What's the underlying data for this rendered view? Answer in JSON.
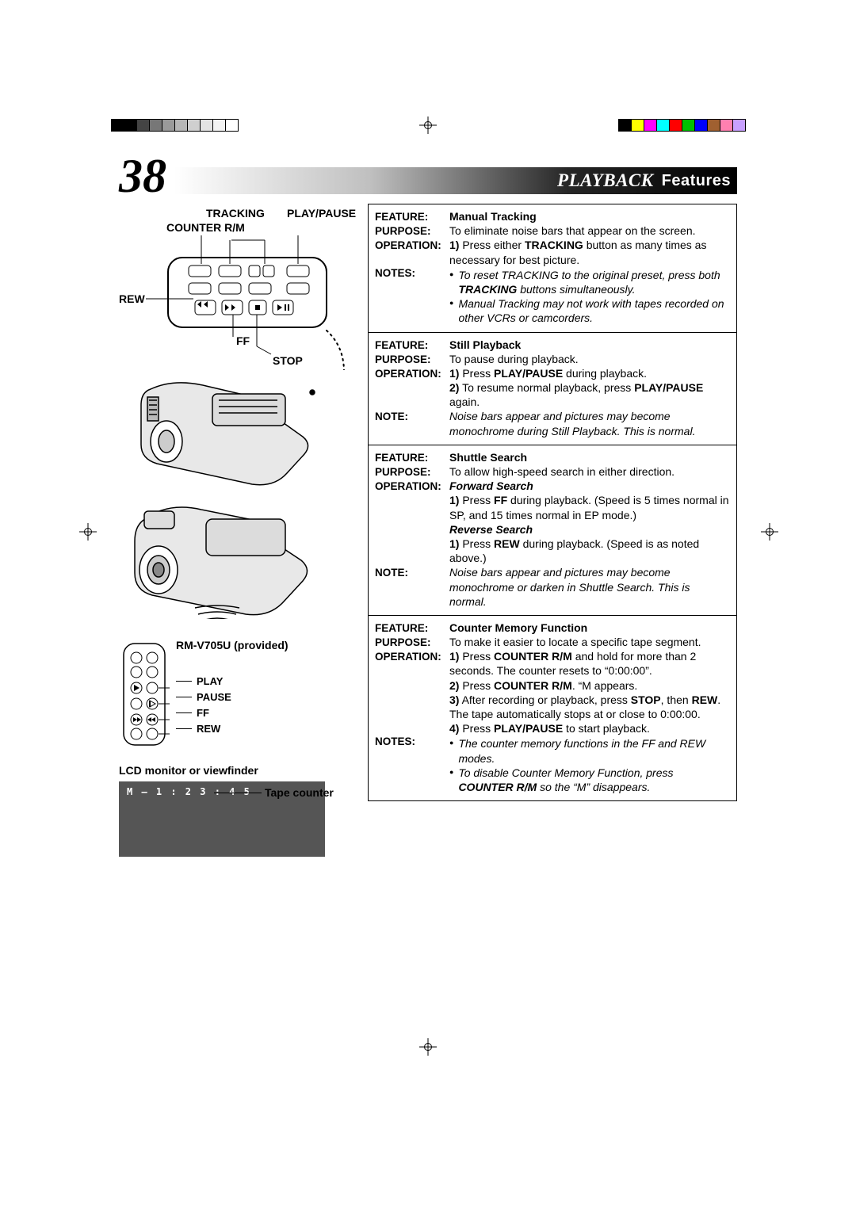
{
  "page_number": "38",
  "header": {
    "title_italic": "PLAYBACK",
    "title_sub": "Features"
  },
  "labels": {
    "tracking": "TRACKING",
    "playpause": "PLAY/PAUSE",
    "counter_rm": "COUNTER R/M",
    "rew": "REW",
    "ff": "FF",
    "stop": "STOP"
  },
  "remote": {
    "model": "RM-V705U (provided)",
    "play": "PLAY",
    "pause": "PAUSE",
    "ff": "FF",
    "rew": "REW"
  },
  "lcd": {
    "title": "LCD monitor or viewfinder",
    "counter": "M – 1 : 2 3 : 4 5",
    "tape_counter_label": "Tape counter"
  },
  "registration": {
    "left_colors": [
      "#000000",
      "#000000",
      "#444444",
      "#777777",
      "#9a9a9a",
      "#b6b6b6",
      "#cfcfcf",
      "#e4e4e4",
      "#f3f3f3",
      "#ffffff"
    ],
    "right_colors": [
      "#000000",
      "#ffff00",
      "#ff00ff",
      "#00ffff",
      "#ff0000",
      "#00c000",
      "#0000ff",
      "#a06030",
      "#ff80b0",
      "#c8a0ff"
    ]
  },
  "features": [
    {
      "feature": "Manual Tracking",
      "purpose": "To eliminate noise bars that appear on the screen.",
      "operation_html": "<span class='stepn'>1)</span> Press either <b>TRACKING</b> button as many times as necessary for best picture.",
      "notes_label": "NOTES:",
      "notes_html": "<div class='bullet note'><span><i>To reset TRACKING to the original preset, press both <b>TRACKING</b> buttons simultaneously.</i></span></div><div class='bullet note'><span><i>Manual Tracking may not work with tapes recorded on other VCRs or camcorders.</i></span></div>"
    },
    {
      "feature": "Still Playback",
      "purpose": "To pause during playback.",
      "operation_html": "<span class='stepn'>1)</span> Press <b>PLAY/PAUSE</b> during playback.<br><span class='stepn'>2)</span> To resume normal playback, press <b>PLAY/PAUSE</b> again.",
      "notes_label": "NOTE:",
      "notes_html": "<span class='note'>Noise bars appear and pictures may become monochrome during Still Playback. This is normal.</span>"
    },
    {
      "feature": "Shuttle Search",
      "purpose": "To allow high-speed search in either direction.",
      "operation_html": "<span class='subhead'>Forward Search</span><br><span class='stepn'>1)</span> Press <b>FF</b> during playback. (Speed is 5 times normal in SP, and 15 times normal in EP mode.)<br><span class='subhead'>Reverse Search</span><br><span class='stepn'>1)</span> Press <b>REW</b> during playback. (Speed is as noted above.)",
      "notes_label": "NOTE:",
      "notes_html": "<span class='note'>Noise bars appear and pictures may become monochrome or darken in Shuttle Search. This is normal.</span>"
    },
    {
      "feature": "Counter Memory Function",
      "purpose": "To make it easier to locate a specific tape segment.",
      "operation_html": "<span class='stepn'>1)</span> Press <b>COUNTER R/M</b> and hold for more than 2 seconds. The counter resets to “0:00:00”.<br><span class='stepn'>2)</span> Press <b>COUNTER R/M</b>. “M appears.<br><span class='stepn'>3)</span> After recording or playback, press <b>STOP</b>, then <b>REW</b>. The tape automatically stops at or close to 0:00:00.<br><span class='stepn'>4)</span> Press <b>PLAY/PAUSE</b> to start playback.",
      "notes_label": "NOTES:",
      "notes_html": "<div class='bullet note'><span><i>The counter memory functions in the FF and REW modes.</i></span></div><div class='bullet note'><span><i>To disable Counter Memory Function, press <b>COUNTER R/M</b> so the “M” disappears.</i></span></div>"
    }
  ],
  "labels_table": {
    "feature": "FEATURE:",
    "purpose": "PURPOSE:",
    "operation": "OPERATION:"
  }
}
